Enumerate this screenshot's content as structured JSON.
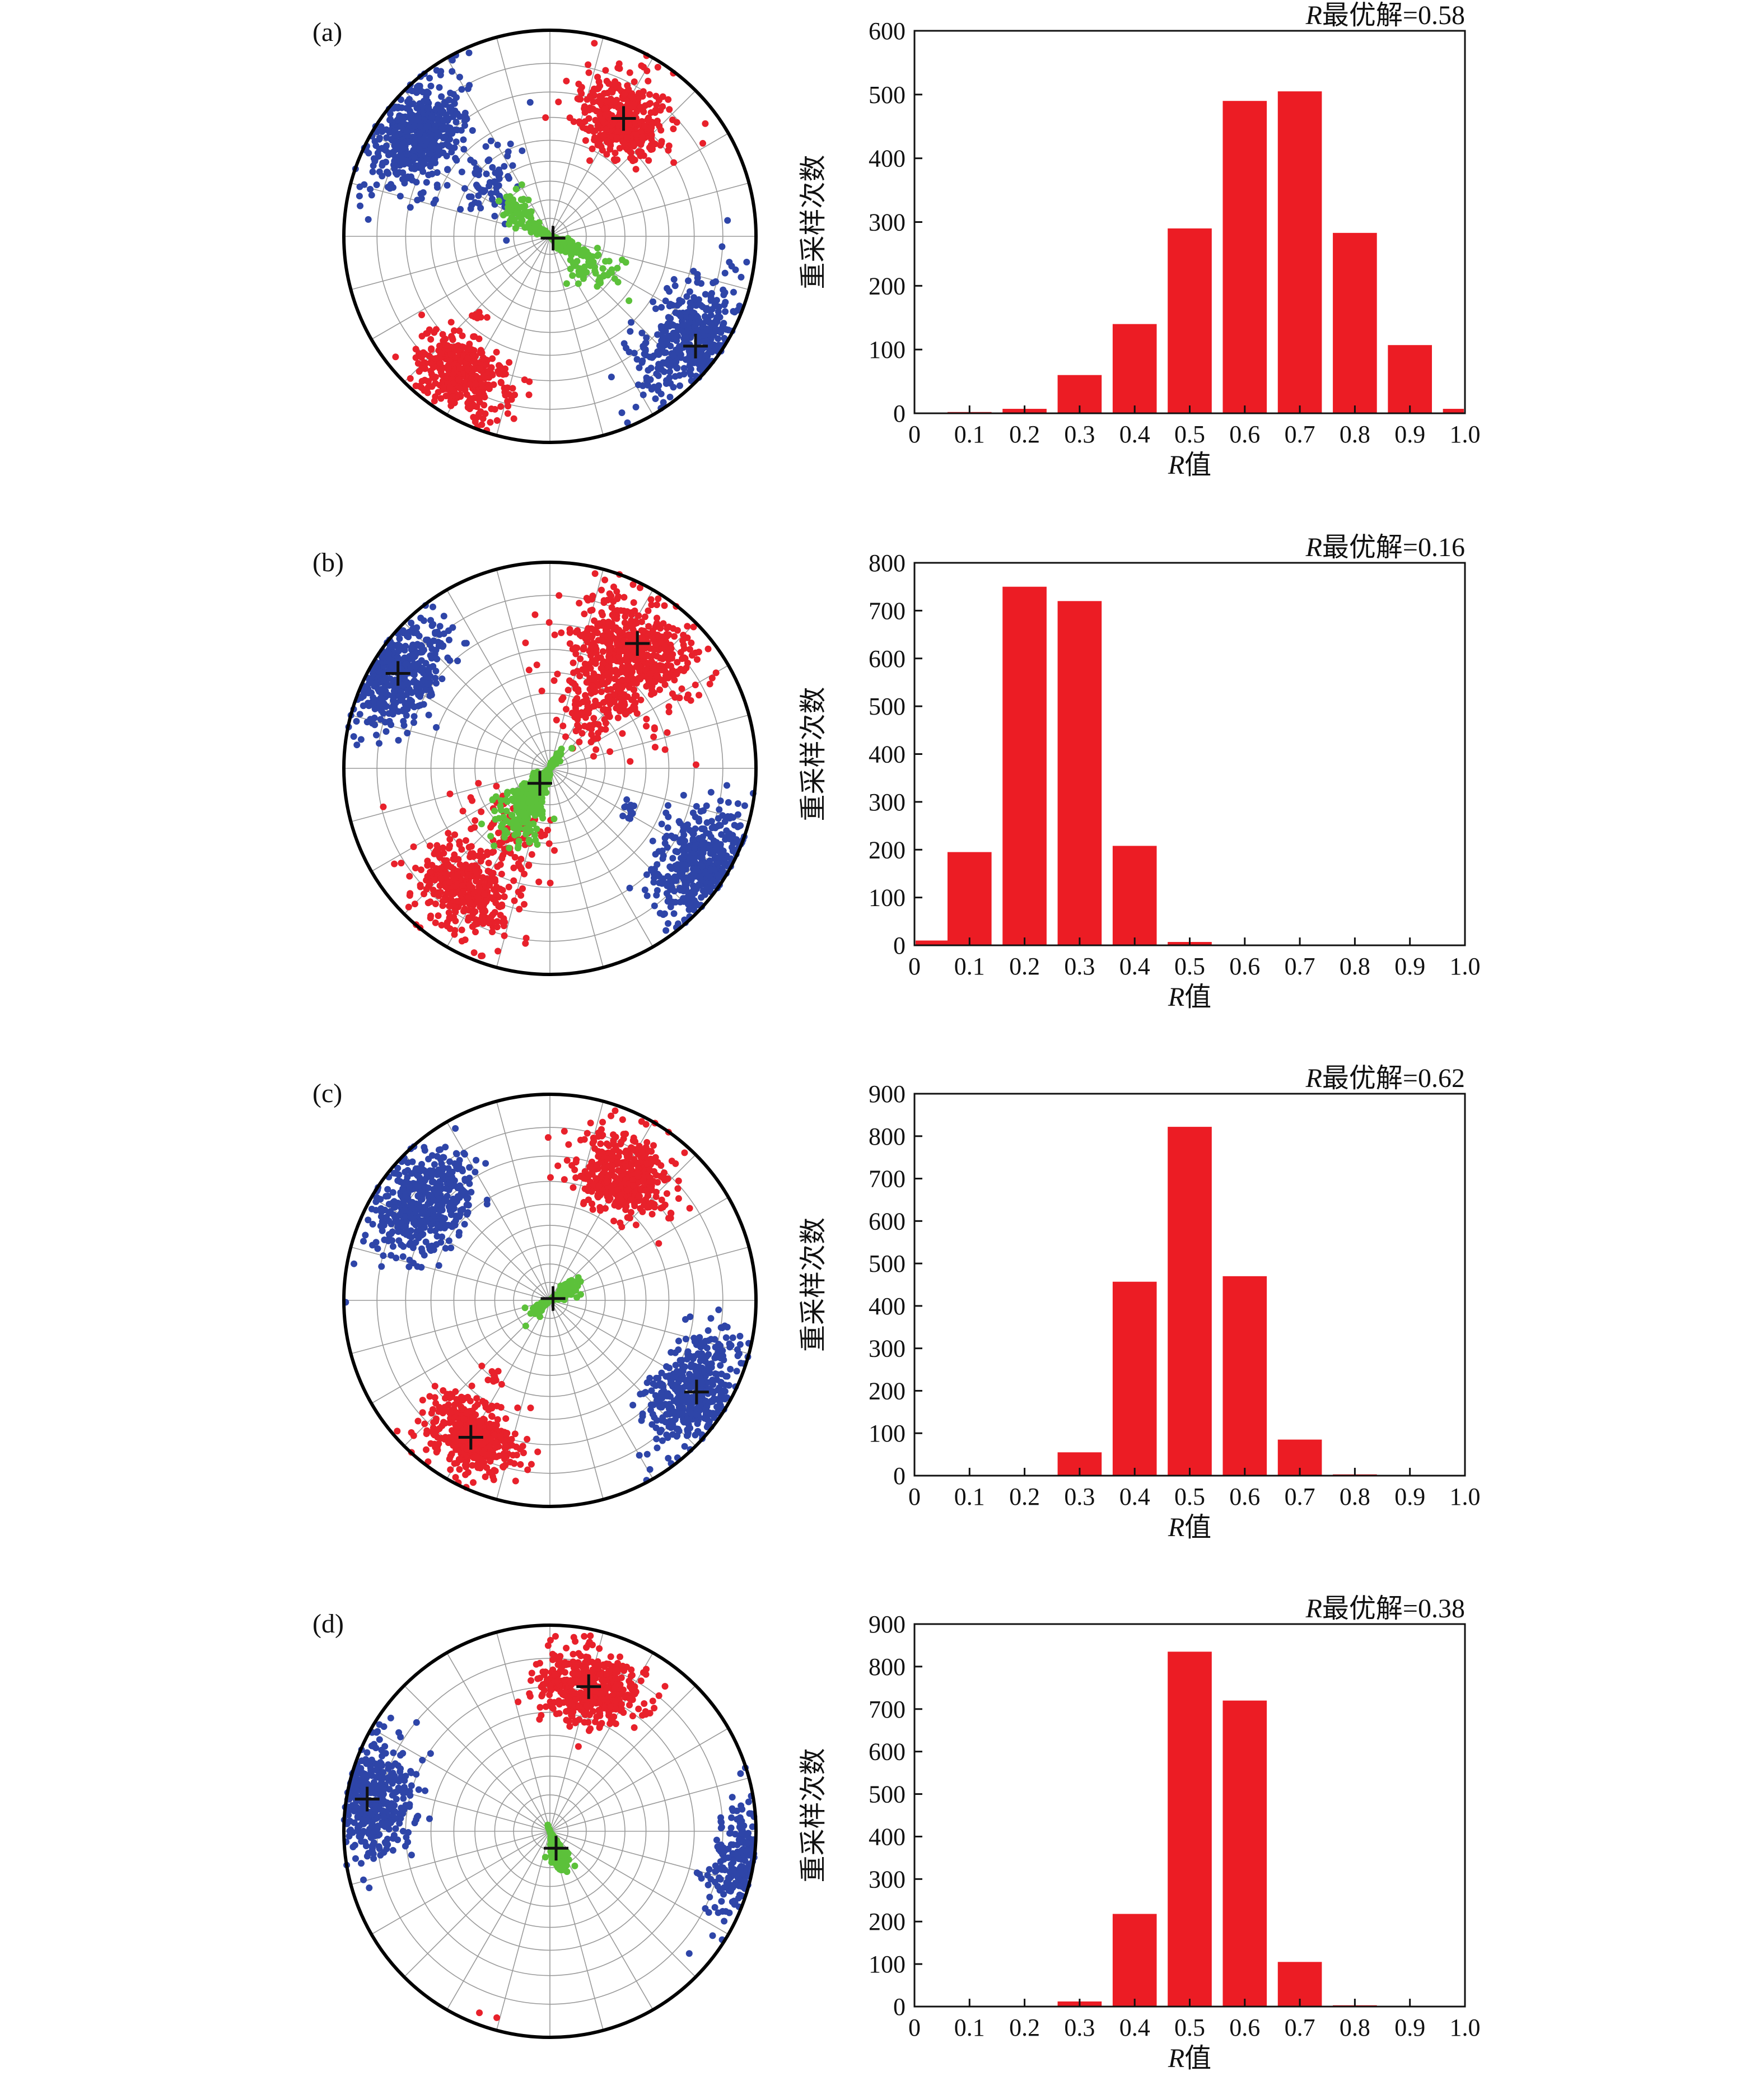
{
  "panels": [
    {
      "label": "(a)",
      "stereonet": {
        "clusters": [
          {
            "color": "red",
            "trend": 32,
            "plunge": 22,
            "spread": 7,
            "count": 420,
            "best": true
          },
          {
            "color": "red",
            "trend": 212,
            "plunge": 13,
            "spread": 6,
            "count": 420,
            "best": false
          },
          {
            "color": "red",
            "trend": 222,
            "plunge": 35,
            "spread": 1.5,
            "count": 12,
            "best": false
          },
          {
            "color": "blue",
            "trend": 127,
            "plunge": 7,
            "spread": 8,
            "count": 470,
            "best": true
          },
          {
            "color": "blue",
            "trend": 307,
            "plunge": 13,
            "spread": 6,
            "count": 430,
            "best": false
          },
          {
            "color": "blue",
            "trend": 312,
            "plunge": 45,
            "spread": 10,
            "count": 80,
            "best": false
          },
          {
            "color": "green",
            "trend": 120,
            "plunge": 88,
            "spread": 6,
            "count": 520,
            "best": true
          },
          {
            "color": "green",
            "trend": 308,
            "plunge": 70,
            "spread": 7,
            "count": 70,
            "best": false
          },
          {
            "color": "green",
            "trend": 128,
            "plunge": 65,
            "spread": 9,
            "count": 70,
            "best": false
          }
        ]
      },
      "chart_data": {
        "type": "bar",
        "title": "R最优解=0.58",
        "ylabel": "重采样次数",
        "xlabel": "R值",
        "xticks": [
          "0",
          "0.1",
          "0.2",
          "0.3",
          "0.4",
          "0.5",
          "0.6",
          "0.7",
          "0.8",
          "0.9",
          "1.0"
        ],
        "bin_centers": [
          0.025,
          0.1,
          0.2,
          0.3,
          0.4,
          0.5,
          0.6,
          0.7,
          0.8,
          0.9,
          1.0
        ],
        "values": [
          0,
          2,
          7,
          60,
          140,
          290,
          490,
          505,
          283,
          107,
          7
        ],
        "yticks": [
          0,
          100,
          200,
          300,
          400,
          500,
          600
        ],
        "ylim": [
          0,
          600
        ],
        "xlim": [
          0,
          1.0
        ]
      }
    },
    {
      "label": "(b)",
      "stereonet": {
        "clusters": [
          {
            "color": "red",
            "trend": 35,
            "plunge": 17,
            "spread": 8,
            "count": 450,
            "best": true
          },
          {
            "color": "red",
            "trend": 35,
            "plunge": 40,
            "spread": 12,
            "count": 250,
            "best": false
          },
          {
            "color": "red",
            "trend": 215,
            "plunge": 17,
            "spread": 7,
            "count": 350,
            "best": false
          },
          {
            "color": "red",
            "trend": 215,
            "plunge": 45,
            "spread": 12,
            "count": 120,
            "best": false
          },
          {
            "color": "blue",
            "trend": 302,
            "plunge": 8,
            "spread": 7,
            "count": 420,
            "best": true
          },
          {
            "color": "blue",
            "trend": 122,
            "plunge": 8,
            "spread": 7,
            "count": 420,
            "best": false
          },
          {
            "color": "blue",
            "trend": 118,
            "plunge": 43,
            "spread": 2,
            "count": 12,
            "best": false
          },
          {
            "color": "green",
            "trend": 214,
            "plunge": 80,
            "spread": 8,
            "count": 480,
            "best": true
          },
          {
            "color": "green",
            "trend": 214,
            "plunge": 60,
            "spread": 9,
            "count": 120,
            "best": false
          }
        ]
      },
      "chart_data": {
        "type": "bar",
        "title": "R最优解=0.16",
        "ylabel": "重采样次数",
        "xlabel": "R值",
        "xticks": [
          "0",
          "0.1",
          "0.2",
          "0.3",
          "0.4",
          "0.5",
          "0.6",
          "0.7",
          "0.8",
          "0.9",
          "1.0"
        ],
        "bin_centers": [
          0.025,
          0.1,
          0.2,
          0.3,
          0.4,
          0.5,
          0.6,
          0.7,
          0.8,
          0.9,
          1.0
        ],
        "values": [
          10,
          195,
          750,
          720,
          208,
          7,
          0,
          0,
          0,
          0,
          0
        ],
        "yticks": [
          0,
          100,
          200,
          300,
          400,
          500,
          600,
          700,
          800
        ],
        "ylim": [
          0,
          800
        ],
        "xlim": [
          0,
          1.0
        ]
      }
    },
    {
      "label": "(c)",
      "stereonet": {
        "clusters": [
          {
            "color": "red",
            "trend": 30,
            "plunge": 20,
            "spread": 7,
            "count": 450,
            "best": false
          },
          {
            "color": "red",
            "trend": 210,
            "plunge": 15,
            "spread": 6,
            "count": 450,
            "best": true
          },
          {
            "color": "red",
            "trend": 215,
            "plunge": 40,
            "spread": 2,
            "count": 12,
            "best": false
          },
          {
            "color": "blue",
            "trend": 308,
            "plunge": 15,
            "spread": 7,
            "count": 450,
            "best": false
          },
          {
            "color": "blue",
            "trend": 122,
            "plunge": 10,
            "spread": 7,
            "count": 450,
            "best": true
          },
          {
            "color": "green",
            "trend": 60,
            "plunge": 88,
            "spread": 6,
            "count": 520,
            "best": true
          }
        ]
      },
      "chart_data": {
        "type": "bar",
        "title": "R最优解=0.62",
        "ylabel": "重采样次数",
        "xlabel": "R值",
        "xticks": [
          "0",
          "0.1",
          "0.2",
          "0.3",
          "0.4",
          "0.5",
          "0.6",
          "0.7",
          "0.8",
          "0.9",
          "1.0"
        ],
        "bin_centers": [
          0.025,
          0.1,
          0.2,
          0.3,
          0.4,
          0.5,
          0.6,
          0.7,
          0.8,
          0.9,
          1.0
        ],
        "values": [
          0,
          0,
          0,
          55,
          457,
          822,
          470,
          85,
          3,
          0,
          0
        ],
        "yticks": [
          0,
          100,
          200,
          300,
          400,
          500,
          600,
          700,
          800,
          900
        ],
        "ylim": [
          0,
          900
        ],
        "xlim": [
          0,
          1.0
        ]
      }
    },
    {
      "label": "(d)",
      "stereonet": {
        "clusters": [
          {
            "color": "red",
            "trend": 15,
            "plunge": 18,
            "spread": 7,
            "count": 450,
            "best": true
          },
          {
            "color": "blue",
            "trend": 280,
            "plunge": 6,
            "spread": 7,
            "count": 450,
            "best": true
          },
          {
            "color": "blue",
            "trend": 100,
            "plunge": 3,
            "spread": 5,
            "count": 150,
            "best": false
          },
          {
            "color": "green",
            "trend": 160,
            "plunge": 80,
            "spread": 5,
            "count": 420,
            "best": true
          }
        ]
      },
      "chart_data": {
        "type": "bar",
        "title": "R最优解=0.38",
        "ylabel": "重采样次数",
        "xlabel": "R值",
        "xticks": [
          "0",
          "0.1",
          "0.2",
          "0.3",
          "0.4",
          "0.5",
          "0.6",
          "0.7",
          "0.8",
          "0.9",
          "1.0"
        ],
        "bin_centers": [
          0.025,
          0.1,
          0.2,
          0.3,
          0.4,
          0.5,
          0.6,
          0.7,
          0.8,
          0.9,
          1.0
        ],
        "values": [
          0,
          0,
          0,
          12,
          218,
          835,
          720,
          105,
          3,
          0,
          0
        ],
        "yticks": [
          0,
          100,
          200,
          300,
          400,
          500,
          600,
          700,
          800,
          900
        ],
        "ylim": [
          0,
          900
        ],
        "xlim": [
          0,
          1.0
        ]
      }
    }
  ],
  "colors": {
    "red": "#e8212b",
    "blue": "#2e45a8",
    "green": "#5cc13a",
    "bar": "#ec1c24",
    "grid": "#9a9a9a",
    "axis": "#111111",
    "cross": "#111111"
  }
}
